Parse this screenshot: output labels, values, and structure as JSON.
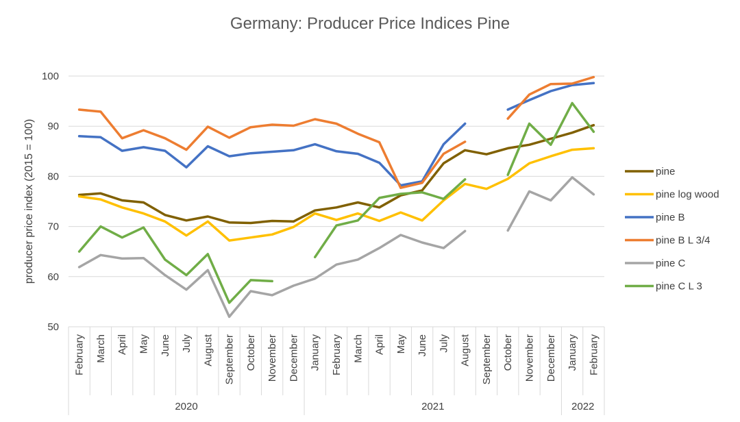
{
  "chart_data": {
    "type": "line",
    "title": "Germany: Producer Price Indices Pine",
    "xlabel": "",
    "ylabel": "producer price index (2015 = 100)",
    "ylim": [
      50,
      100
    ],
    "yticks": [
      50,
      60,
      70,
      80,
      90,
      100
    ],
    "grid": true,
    "legend_position": "right",
    "categories": [
      "February",
      "March",
      "April",
      "May",
      "June",
      "July",
      "August",
      "September",
      "October",
      "November",
      "December",
      "January",
      "February",
      "March",
      "April",
      "May",
      "June",
      "July",
      "August",
      "September",
      "October",
      "November",
      "December",
      "January",
      "February"
    ],
    "years": [
      {
        "label": "2020",
        "start": 0,
        "end": 10
      },
      {
        "label": "2021",
        "start": 11,
        "end": 22
      },
      {
        "label": "2022",
        "start": 23,
        "end": 24
      }
    ],
    "series": [
      {
        "name": "pine",
        "color": "#806000",
        "values": [
          76.3,
          76.6,
          75.2,
          74.8,
          72.3,
          71.2,
          72.0,
          70.8,
          70.7,
          71.1,
          71.0,
          73.2,
          73.8,
          74.8,
          73.8,
          76.2,
          77.2,
          82.6,
          85.2,
          84.4,
          85.6,
          86.3,
          87.5,
          88.7,
          90.2
        ]
      },
      {
        "name": "pine log wood",
        "color": "#FFC000",
        "values": [
          76.0,
          75.4,
          73.8,
          72.6,
          71.0,
          68.2,
          71.0,
          67.2,
          67.8,
          68.4,
          69.9,
          72.6,
          71.3,
          72.6,
          71.1,
          72.8,
          71.2,
          75.2,
          78.5,
          77.5,
          79.5,
          82.6,
          84.0,
          85.3,
          85.6
        ]
      },
      {
        "name": "pine B",
        "color": "#4472C4",
        "values": [
          88.0,
          87.8,
          85.1,
          85.8,
          85.1,
          81.8,
          86.0,
          84.0,
          84.6,
          84.9,
          85.2,
          86.4,
          85.0,
          84.5,
          82.7,
          78.2,
          79.0,
          86.4,
          90.5,
          null,
          93.3,
          95.2,
          97.0,
          98.2,
          98.6
        ]
      },
      {
        "name": "pine B L 3/4",
        "color": "#ED7D31",
        "values": [
          93.3,
          92.9,
          87.6,
          89.2,
          87.6,
          85.3,
          89.9,
          87.7,
          89.8,
          90.3,
          90.1,
          91.4,
          90.5,
          88.5,
          86.8,
          77.7,
          78.7,
          84.5,
          86.9,
          null,
          91.5,
          96.3,
          98.4,
          98.5,
          99.8
        ]
      },
      {
        "name": "pine C",
        "color": "#A5A5A5",
        "values": [
          61.9,
          64.3,
          63.6,
          63.7,
          60.3,
          57.4,
          61.3,
          52.0,
          57.1,
          56.3,
          58.2,
          59.6,
          62.4,
          63.4,
          65.7,
          68.3,
          66.8,
          65.7,
          69.1,
          null,
          69.2,
          77.0,
          75.2,
          79.8,
          76.4
        ]
      },
      {
        "name": "pine C L 3",
        "color": "#70AD47",
        "values": [
          65.0,
          70.0,
          67.8,
          69.8,
          63.4,
          60.3,
          64.5,
          54.8,
          59.3,
          59.1,
          null,
          63.9,
          70.2,
          71.2,
          75.7,
          76.5,
          76.8,
          75.5,
          79.4,
          null,
          80.3,
          90.5,
          86.3,
          94.6,
          88.9
        ]
      }
    ]
  }
}
